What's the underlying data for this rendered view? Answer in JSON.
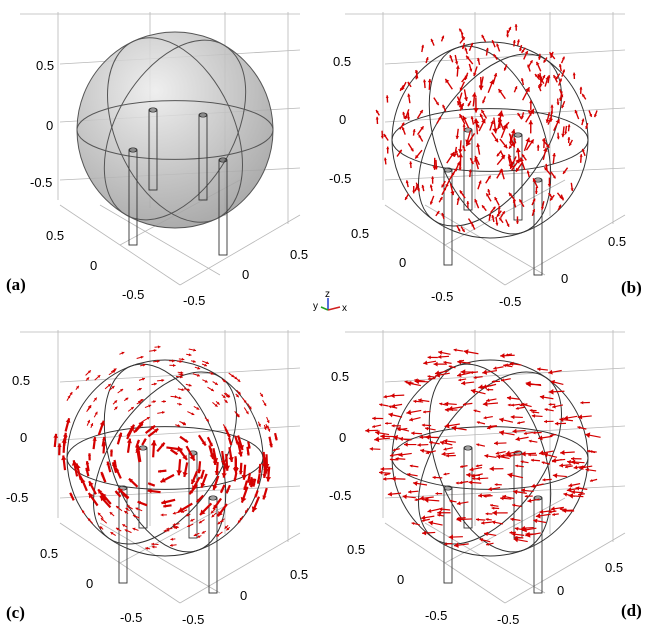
{
  "panels": [
    {
      "id": "a",
      "label": "(a)",
      "kind": "sphere",
      "ticks_left": [
        "0.5",
        "0",
        "-0.5"
      ],
      "ticks_bottom_left": [
        "0.5",
        "0",
        "-0.5"
      ],
      "ticks_bottom_right": [
        "0.5",
        "0",
        "-0.5"
      ]
    },
    {
      "id": "b",
      "label": "(b)",
      "kind": "field-dense-vertical",
      "ticks_left": [
        "0.5",
        "0",
        "-0.5"
      ],
      "ticks_bottom_left": [
        "0.5",
        "0",
        "-0.5"
      ],
      "ticks_bottom_right": [
        "0.5",
        "0",
        "-0.5"
      ]
    },
    {
      "id": "c",
      "label": "(c)",
      "kind": "field-circulating",
      "ticks_left": [
        "0.5",
        "0",
        "-0.5"
      ],
      "ticks_bottom_left": [
        "0.5",
        "0",
        "-0.5"
      ],
      "ticks_bottom_right": [
        "0.5",
        "0",
        "-0.5"
      ]
    },
    {
      "id": "d",
      "label": "(d)",
      "kind": "field-horizontal",
      "ticks_left": [
        "0.5",
        "0",
        "-0.5"
      ],
      "ticks_bottom_left": [
        "0.5",
        "0",
        "-0.5"
      ],
      "ticks_bottom_right": [
        "0.5",
        "0",
        "-0.5"
      ]
    }
  ],
  "triad": {
    "x": "x",
    "y": "y",
    "z": "z"
  },
  "colors": {
    "arrow": "#d40000",
    "outline": "#333333",
    "grid": "#b8b8b8",
    "sphere": "#c8c8c8"
  }
}
